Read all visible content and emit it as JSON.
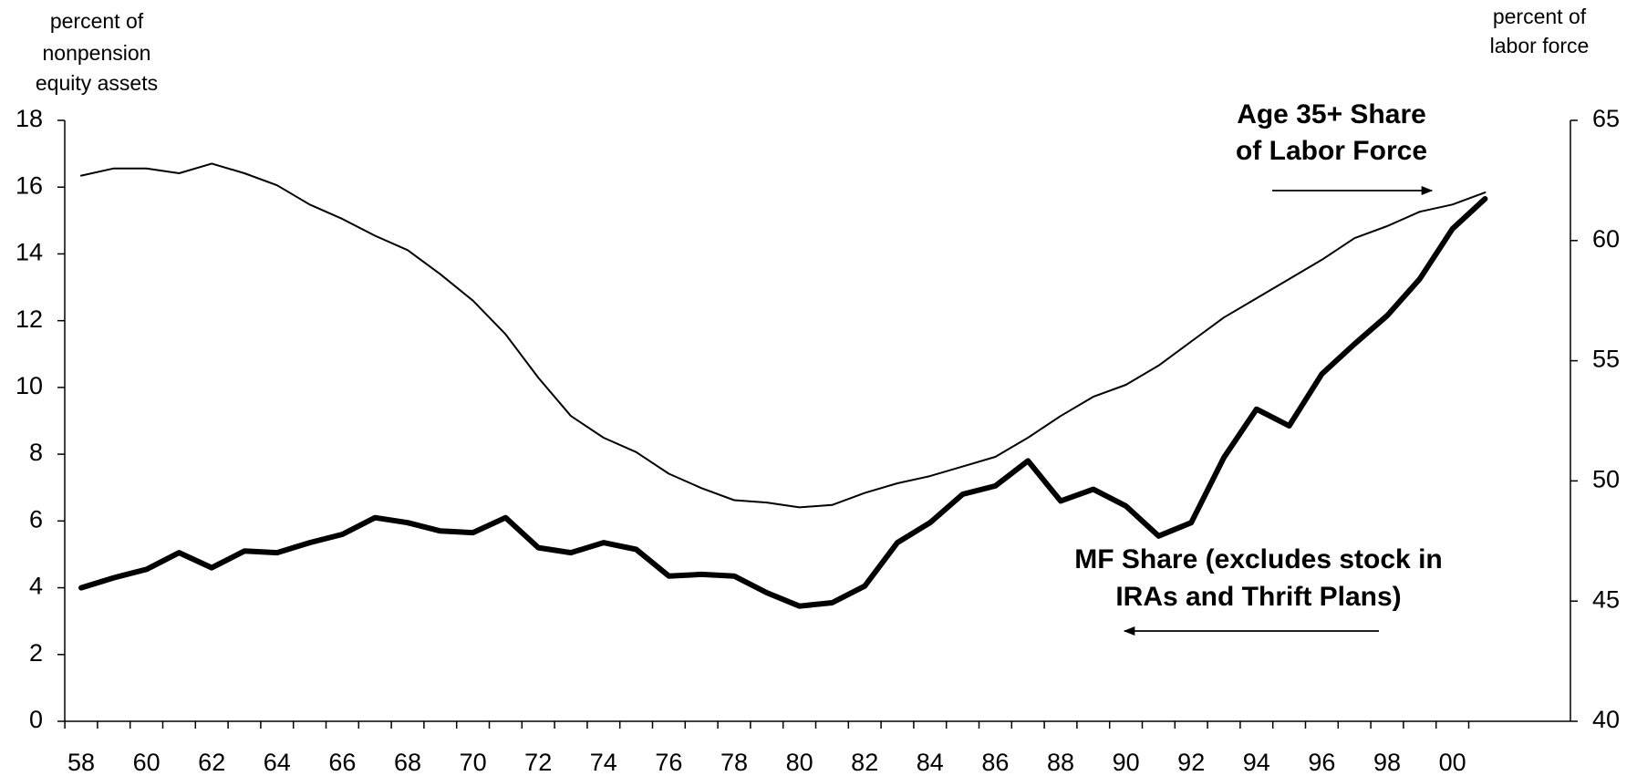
{
  "chart_data": {
    "type": "line",
    "y_label": [
      "percent of",
      "nonpension",
      "equity assets"
    ],
    "y2_label": [
      "percent of",
      "labor force"
    ],
    "categories": [
      "58",
      null,
      "60",
      null,
      "62",
      null,
      "64",
      null,
      "66",
      null,
      "68",
      null,
      "70",
      null,
      "72",
      null,
      "74",
      null,
      "76",
      null,
      "78",
      null,
      "80",
      null,
      "82",
      null,
      "84",
      null,
      "86",
      null,
      "88",
      null,
      "90",
      null,
      "92",
      null,
      "94",
      null,
      "96",
      null,
      "98",
      null,
      "00",
      null
    ],
    "series": [
      {
        "color": "#000000",
        "width": 6,
        "axis": "y",
        "values": [
          4.0,
          4.3,
          4.55,
          5.05,
          4.6,
          5.1,
          5.05,
          5.35,
          5.6,
          6.1,
          5.95,
          5.7,
          5.65,
          6.1,
          5.2,
          5.05,
          5.35,
          5.15,
          4.35,
          4.4,
          4.35,
          3.85,
          3.45,
          3.55,
          4.05,
          5.35,
          5.95,
          6.8,
          7.05,
          7.8,
          6.6,
          6.95,
          6.45,
          5.55,
          5.95,
          7.9,
          9.35,
          8.85,
          10.4,
          11.3,
          12.15,
          13.25,
          14.75,
          15.65
        ]
      },
      {
        "color": "#000000",
        "width": 2,
        "axis": "y2",
        "values": [
          62.7,
          63.0,
          63.0,
          62.8,
          63.2,
          62.8,
          62.3,
          61.5,
          60.9,
          60.2,
          59.6,
          58.6,
          57.5,
          56.1,
          54.3,
          52.7,
          51.8,
          51.2,
          50.3,
          49.7,
          49.2,
          49.1,
          48.9,
          49.0,
          49.5,
          49.9,
          50.2,
          50.6,
          51.0,
          51.8,
          52.7,
          53.5,
          54.0,
          54.8,
          55.8,
          56.8,
          57.6,
          58.4,
          59.2,
          60.1,
          60.6,
          61.2,
          61.5,
          62.0
        ]
      }
    ],
    "annotations": [
      {
        "lines": [
          "Age 35+ Share",
          "of Labor Force"
        ],
        "arrow": "right"
      },
      {
        "lines": [
          "MF Share (excludes stock in",
          "IRAs and Thrift Plans)"
        ],
        "arrow": "left"
      }
    ],
    "ylim": [
      0,
      18
    ],
    "yticks": [
      0,
      2,
      4,
      6,
      8,
      10,
      12,
      14,
      16,
      18
    ],
    "y2lim": [
      40,
      65
    ],
    "y2ticks": [
      40,
      45,
      50,
      55,
      60,
      65
    ],
    "grid": false
  }
}
